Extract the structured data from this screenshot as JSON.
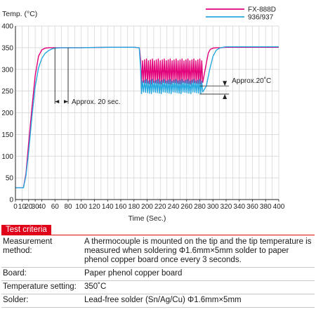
{
  "chart_data": {
    "type": "line",
    "ylabel": "Temp. (°C)",
    "xlabel": "Time (Sec.)",
    "xlim": [
      0,
      400
    ],
    "ylim": [
      0,
      400
    ],
    "x_ticks": [
      0,
      10,
      20,
      30,
      40,
      60,
      80,
      100,
      120,
      140,
      160,
      180,
      200,
      220,
      240,
      260,
      280,
      300,
      320,
      340,
      360,
      380,
      400
    ],
    "x_tick_labels": [
      "0",
      "10",
      "20",
      "30",
      "40",
      "60",
      "80",
      "100",
      "120",
      "140",
      "160",
      "180",
      "200",
      "220",
      "240",
      "260",
      "280",
      "300",
      "320",
      "340",
      "360",
      "380",
      "400"
    ],
    "y_ticks": [
      0,
      50,
      100,
      150,
      200,
      250,
      300,
      350,
      400
    ],
    "grid": true,
    "legend_position": "top-right",
    "series": [
      {
        "name": "FX-888D",
        "color": "#e2007a",
        "x": [
          0,
          12,
          16,
          20,
          25,
          30,
          35,
          40,
          45,
          50,
          55,
          60,
          70,
          80,
          100,
          140,
          180,
          188,
          190,
          192,
          195,
          200,
          205,
          210,
          220,
          230,
          240,
          250,
          260,
          270,
          280,
          285,
          290,
          293,
          296,
          300,
          305,
          310,
          320,
          340,
          360,
          380,
          400
        ],
        "y": [
          27,
          27,
          60,
          130,
          210,
          285,
          330,
          345,
          349,
          350,
          350,
          350,
          350,
          350,
          350,
          351,
          351,
          350,
          325,
          295,
          302,
          296,
          300,
          292,
          288,
          290,
          291,
          286,
          288,
          289,
          285,
          262,
          315,
          338,
          346,
          349,
          350,
          350,
          351,
          351,
          351,
          351,
          351
        ],
        "oscillation": {
          "x_range": [
            190,
            286
          ],
          "y_range": [
            266,
            325
          ],
          "period_sec": 3
        }
      },
      {
        "name": "936/937",
        "color": "#26a9e0",
        "x": [
          0,
          12,
          16,
          20,
          25,
          30,
          35,
          40,
          45,
          50,
          55,
          60,
          70,
          80,
          100,
          140,
          180,
          188,
          190,
          195,
          200,
          210,
          220,
          230,
          240,
          250,
          260,
          270,
          280,
          285,
          290,
          295,
          300,
          305,
          310,
          315,
          320,
          340,
          360,
          380,
          400
        ],
        "y": [
          27,
          27,
          55,
          110,
          190,
          260,
          303,
          325,
          337,
          343,
          347,
          349,
          350,
          350,
          350,
          351,
          351,
          350,
          305,
          275,
          270,
          262,
          257,
          255,
          256,
          254,
          253,
          255,
          254,
          255,
          262,
          300,
          330,
          344,
          349,
          351,
          352,
          352,
          352,
          352,
          352
        ],
        "oscillation": {
          "x_range": [
            190,
            286
          ],
          "y_range": [
            244,
            278
          ],
          "period_sec": 3
        }
      }
    ],
    "annotations": [
      {
        "text": "Approx. 20 sec.",
        "x_from": 60,
        "x_to": 80,
        "y": 250
      },
      {
        "text": "Approx.20˚C",
        "x": 318,
        "y_from": 243,
        "y_to": 262
      }
    ]
  },
  "criteria": {
    "badge": "Test criteria",
    "rows": [
      {
        "label": "Measurement method:",
        "value": "A thermocouple is mounted on the tip and the tip temperature is measured when soldering Φ1.6mm×5mm solder to paper phenol copper board once every 3 seconds."
      },
      {
        "label": "Board:",
        "value": "Paper phenol copper board"
      },
      {
        "label": "Temperature setting:",
        "value": "350˚C"
      },
      {
        "label": "Solder:",
        "value": "Lead-free solder (Sn/Ag/Cu) Φ1.6mm×5mm"
      }
    ]
  }
}
